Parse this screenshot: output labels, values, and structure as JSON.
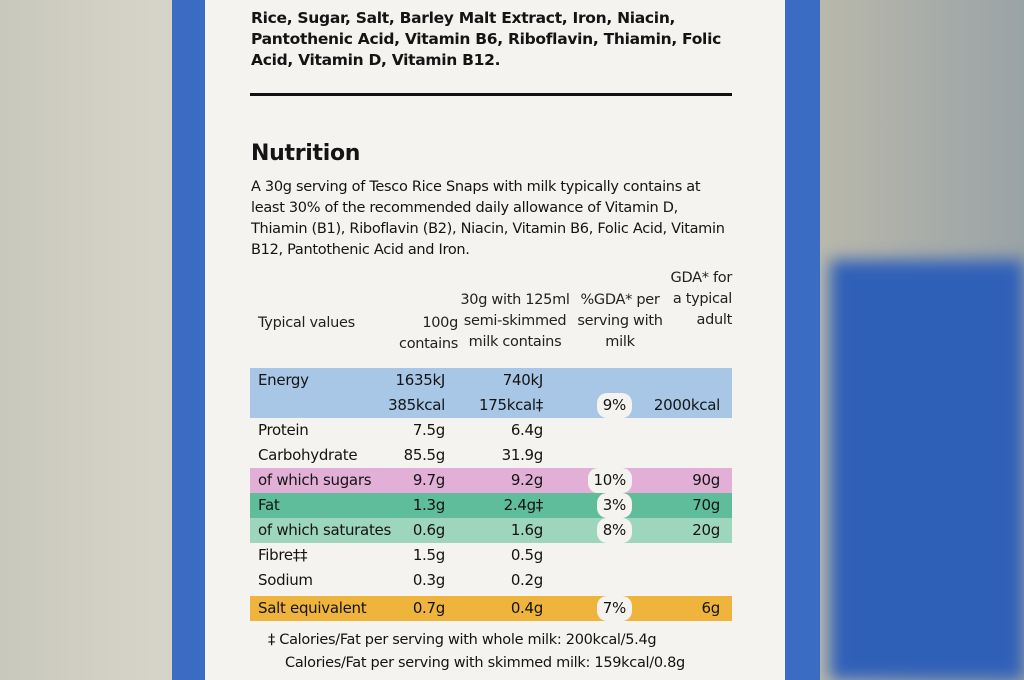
{
  "ingredients": "Rice, Sugar, Salt, Barley Malt Extract, Iron, Niacin, Pantothenic Acid, Vitamin B6, Riboflavin, Thiamin, Folic Acid, Vitamin D, Vitamin B12.",
  "nutrition": {
    "heading": "Nutrition",
    "intro": "A 30g serving of Tesco Rice Snaps with milk typically contains at least 30% of the recommended daily allowance of Vitamin D, Thiamin (B1), Riboflavin (B2), Niacin, Vitamin B6, Folic Acid, Vitamin B12, Pantothenic Acid and Iron.",
    "table": {
      "headers": [
        "Typical values",
        "100g contains",
        "30g with 125ml semi-skimmed milk contains",
        "%GDA* per serving with milk",
        "GDA* for a typical adult"
      ],
      "rows": [
        {
          "label": "Energy",
          "per_100g": "1635kJ",
          "per_serving": "740kJ",
          "highlight": "#a8c6e6"
        },
        {
          "per_100g": "385kcal",
          "per_serving": "175kcal‡",
          "gda_pct": "9%",
          "gda": "2000kcal",
          "highlight": "#a8c6e6"
        },
        {
          "label": "Protein",
          "per_100g": "7.5g",
          "per_serving": "6.4g"
        },
        {
          "label": "Carbohydrate",
          "per_100g": "85.5g",
          "per_serving": "31.9g"
        },
        {
          "label": "of which sugars",
          "per_100g": "9.7g",
          "per_serving": "9.2g",
          "gda_pct": "10%",
          "gda": "90g",
          "highlight": "#e2b0d6"
        },
        {
          "label": "Fat",
          "per_100g": "1.3g",
          "per_serving": "2.4g‡",
          "gda_pct": "3%",
          "gda": "70g",
          "highlight": "#5fbd9c"
        },
        {
          "label": "of which saturates",
          "per_100g": "0.6g",
          "per_serving": "1.6g",
          "gda_pct": "8%",
          "gda": "20g",
          "highlight": "#9ed5bd"
        },
        {
          "label": "Fibre‡‡",
          "per_100g": "1.5g",
          "per_serving": "0.5g"
        },
        {
          "label": "Sodium",
          "per_100g": "0.3g",
          "per_serving": "0.2g"
        },
        {
          "label": "Salt equivalent",
          "per_100g": "0.7g",
          "per_serving": "0.4g",
          "gda_pct": "7%",
          "gda": "6g",
          "highlight": "#eeb43c"
        }
      ]
    },
    "footnotes": [
      "‡ Calories/Fat per serving with whole milk: 200kcal/5.4g",
      "Calories/Fat per serving with skimmed milk: 159kcal/0.8g"
    ]
  }
}
